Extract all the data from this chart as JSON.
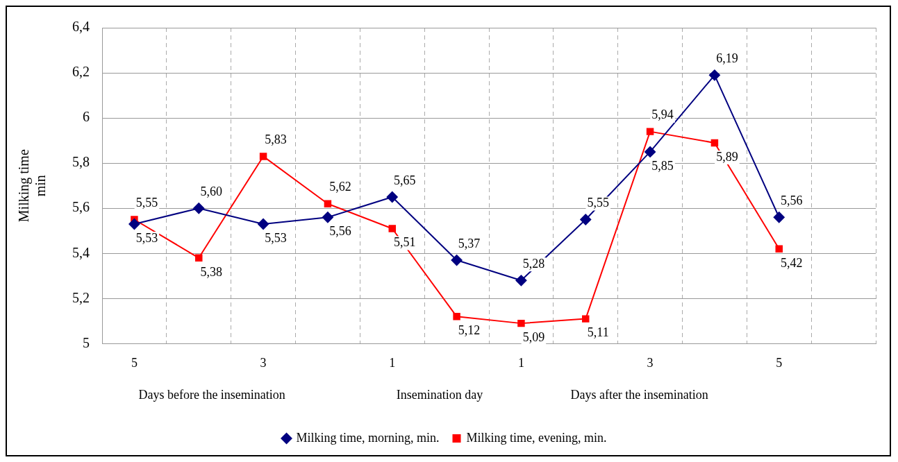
{
  "chart_data": {
    "type": "line",
    "ylabel": "Milking time min",
    "categories": [
      "5",
      null,
      "3",
      null,
      "1",
      null,
      "1",
      null,
      "3",
      null,
      "5",
      null
    ],
    "series": [
      {
        "name": "Milking time, morning, min.",
        "color": "#000080",
        "marker": "diamond",
        "values": [
          5.53,
          5.6,
          5.53,
          5.56,
          5.65,
          5.37,
          5.28,
          5.55,
          5.85,
          6.19,
          5.56,
          null
        ],
        "value_labels": [
          "5,53",
          "5,60",
          "5,53",
          "5,56",
          "5,65",
          "5,37",
          "5,28",
          "5,55",
          "5,85",
          "6,19",
          "5,56",
          null
        ]
      },
      {
        "name": "Milking time, evening, min.",
        "color": "#ff0000",
        "marker": "square",
        "values": [
          5.55,
          5.38,
          5.83,
          5.62,
          5.51,
          5.12,
          5.09,
          5.11,
          5.94,
          5.89,
          5.42,
          null
        ],
        "value_labels": [
          "5,55",
          "5,38",
          "5,83",
          "5,62",
          "5,51",
          "5,12",
          "5,09",
          "5,11",
          "5,94",
          "5,89",
          "5,42",
          null
        ]
      }
    ],
    "ylim": [
      5,
      6.4
    ],
    "yticks": [
      {
        "value": 5,
        "label": "5"
      },
      {
        "value": 5.2,
        "label": "5,2"
      },
      {
        "value": 5.4,
        "label": "5,4"
      },
      {
        "value": 5.6,
        "label": "5,6"
      },
      {
        "value": 5.8,
        "label": "5,8"
      },
      {
        "value": 6,
        "label": "6"
      },
      {
        "value": 6.2,
        "label": "6,2"
      },
      {
        "value": 6.4,
        "label": "6,4"
      }
    ],
    "annotations": [
      "Days before the insemination",
      "Insemination day",
      "Days after the insemination"
    ],
    "grid": true,
    "legend": "bottom"
  }
}
